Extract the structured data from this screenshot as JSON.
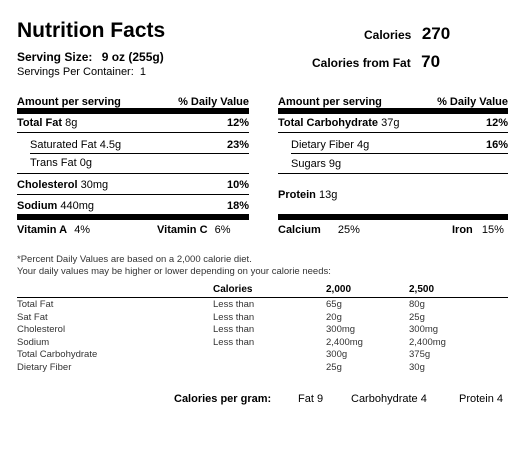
{
  "title": "Nutrition Facts",
  "calories": {
    "label": "Calories",
    "value": "270"
  },
  "calories_from_fat": {
    "label": "Calories from Fat",
    "value": "70"
  },
  "serving_size": {
    "label": "Serving Size:",
    "value": "9 oz (255g)"
  },
  "servings_per_container": {
    "label": "Servings Per Container:",
    "value": "1"
  },
  "left": {
    "header_amount": "Amount per serving",
    "header_dv": "% Daily Value",
    "total_fat": {
      "label": "Total Fat",
      "amount": "8g",
      "dv": "12%"
    },
    "saturated_fat": {
      "label": "Saturated Fat",
      "amount": "4.5g",
      "dv": "23%"
    },
    "trans_fat": {
      "label": "Trans Fat",
      "amount": "0g"
    },
    "cholesterol": {
      "label": "Cholesterol",
      "amount": "30mg",
      "dv": "10%"
    },
    "sodium": {
      "label": "Sodium",
      "amount": "440mg",
      "dv": "18%"
    },
    "vitamin_a": {
      "label": "Vitamin A",
      "dv": "4%"
    },
    "vitamin_c": {
      "label": "Vitamin C",
      "dv": "6%"
    }
  },
  "right": {
    "header_amount": "Amount per serving",
    "header_dv": "% Daily Value",
    "total_carb": {
      "label": "Total Carbohydrate",
      "amount": "37g",
      "dv": "12%"
    },
    "fiber": {
      "label": "Dietary Fiber",
      "amount": "4g",
      "dv": "16%"
    },
    "sugars": {
      "label": "Sugars",
      "amount": "9g"
    },
    "protein": {
      "label": "Protein",
      "amount": "13g"
    },
    "calcium": {
      "label": "Calcium",
      "dv": "25%"
    },
    "iron": {
      "label": "Iron",
      "dv": "15%"
    }
  },
  "footnote": {
    "line1": "*Percent Daily Values are based on a 2,000 calorie diet.",
    "line2": "Your daily values may be higher or lower depending on your calorie needs:"
  },
  "dv_table": {
    "headers": [
      "Calories",
      "2,000",
      "2,500"
    ],
    "rows": [
      {
        "nutrient": "Total Fat",
        "qualifier": "Less than",
        "c2000": "65g",
        "c2500": "80g"
      },
      {
        "nutrient": "Sat Fat",
        "qualifier": "Less than",
        "c2000": "20g",
        "c2500": "25g"
      },
      {
        "nutrient": "Cholesterol",
        "qualifier": "Less than",
        "c2000": "300mg",
        "c2500": "300mg"
      },
      {
        "nutrient": "Sodium",
        "qualifier": "Less than",
        "c2000": "2,400mg",
        "c2500": "2,400mg"
      },
      {
        "nutrient": "Total Carbohydrate",
        "qualifier": "",
        "c2000": "300g",
        "c2500": "375g"
      },
      {
        "nutrient": "Dietary Fiber",
        "qualifier": "",
        "c2000": "25g",
        "c2500": "30g"
      }
    ]
  },
  "calories_per_gram": {
    "label": "Calories per gram:",
    "fat": "Fat 9",
    "carbohydrate": "Carbohydrate 4",
    "protein": "Protein 4"
  }
}
